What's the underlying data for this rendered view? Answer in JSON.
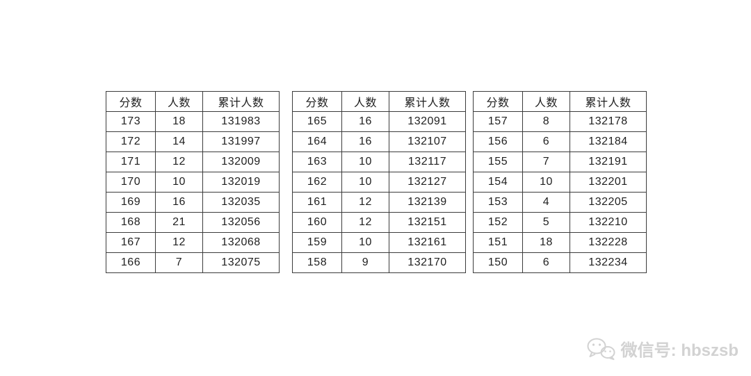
{
  "colors": {
    "background": "#ffffff",
    "table_border": "#3b3b3b",
    "cell_text": "#1f1f1f",
    "watermark_text": "#d2d2d2"
  },
  "chart_data": [
    {
      "type": "table",
      "columns": [
        "分数",
        "人数",
        "累计人数"
      ],
      "rows": [
        [
          173,
          18,
          131983
        ],
        [
          172,
          14,
          131997
        ],
        [
          171,
          12,
          132009
        ],
        [
          170,
          10,
          132019
        ],
        [
          169,
          16,
          132035
        ],
        [
          168,
          21,
          132056
        ],
        [
          167,
          12,
          132068
        ],
        [
          166,
          7,
          132075
        ]
      ]
    },
    {
      "type": "table",
      "columns": [
        "分数",
        "人数",
        "累计人数"
      ],
      "rows": [
        [
          165,
          16,
          132091
        ],
        [
          164,
          16,
          132107
        ],
        [
          163,
          10,
          132117
        ],
        [
          162,
          10,
          132127
        ],
        [
          161,
          12,
          132139
        ],
        [
          160,
          12,
          132151
        ],
        [
          159,
          10,
          132161
        ],
        [
          158,
          9,
          132170
        ]
      ]
    },
    {
      "type": "table",
      "columns": [
        "分数",
        "人数",
        "累计人数"
      ],
      "rows": [
        [
          157,
          8,
          132178
        ],
        [
          156,
          6,
          132184
        ],
        [
          155,
          7,
          132191
        ],
        [
          154,
          10,
          132201
        ],
        [
          153,
          4,
          132205
        ],
        [
          152,
          5,
          132210
        ],
        [
          151,
          18,
          132228
        ],
        [
          150,
          6,
          132234
        ]
      ]
    }
  ],
  "watermark": {
    "icon": "wechat-icon",
    "text": "微信号: hbszsb"
  }
}
